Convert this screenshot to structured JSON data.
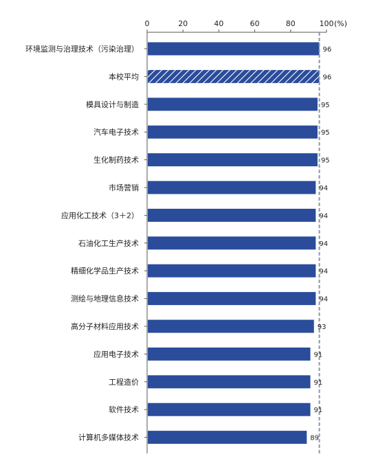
{
  "chart_data": {
    "type": "bar",
    "orientation": "horizontal",
    "xlim": [
      0,
      100
    ],
    "xticks": [
      0,
      20,
      40,
      60,
      80,
      100
    ],
    "x_unit": "(%)",
    "grid": false,
    "reference_line": 96,
    "categories": [
      "环境监测与治理技术（污染治理）",
      "本校平均",
      "模具设计与制造",
      "汽车电子技术",
      "生化制药技术",
      "市场营销",
      "应用化工技术（3＋2）",
      "石油化工生产技术",
      "精细化学品生产技术",
      "测绘与地理信息技术",
      "高分子材料应用技术",
      "应用电子技术",
      "工程造价",
      "软件技术",
      "计算机多媒体技术"
    ],
    "values": [
      96,
      96,
      95,
      95,
      95,
      94,
      94,
      94,
      94,
      94,
      93,
      91,
      91,
      91,
      89
    ],
    "highlight_index": 1,
    "colors": {
      "bar": "#2A4C9B",
      "hatch_bg": "#2A4C9B",
      "hatch_line": "#FFFFFF",
      "reference_line": "#8C96A8",
      "axis": "#555555"
    }
  }
}
